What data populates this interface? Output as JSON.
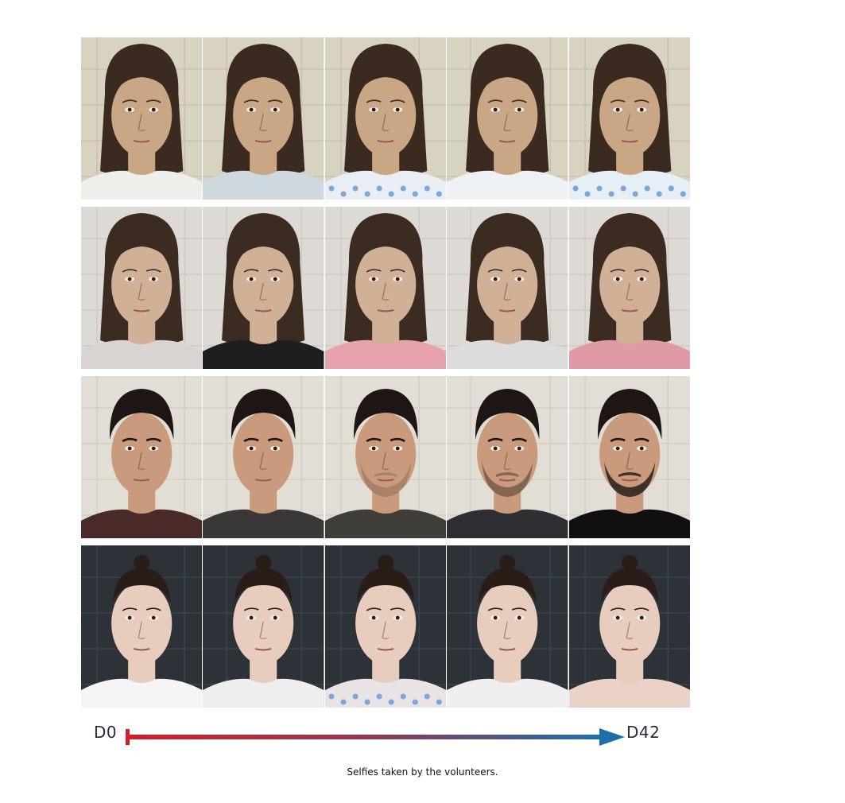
{
  "figure": {
    "caption": "Selfies taken by the volunteers."
  },
  "timeline": {
    "start_label": "D0",
    "end_label": "D42",
    "start_color": "#d11f2b",
    "end_color": "#1e6fa8"
  },
  "rows": [
    {
      "subject": "volunteer-1",
      "bg": "#d8d2c0",
      "tile": "#c7c2ad",
      "skin": "#c9a784",
      "hair": "#3a2a1f",
      "hair_style": "long",
      "facial_hair": "none",
      "clothes": [
        "#eeeeea",
        "#cfd8de",
        "#e8eef4",
        "#eef2f5",
        "#e6eef6"
      ],
      "clothes_pattern": [
        false,
        false,
        true,
        false,
        true
      ]
    },
    {
      "subject": "volunteer-2",
      "bg": "#dddad5",
      "tile": "#cfcbc4",
      "skin": "#d0b097",
      "hair": "#3b2b20",
      "hair_style": "long",
      "facial_hair": "none",
      "clothes": [
        "#d9d3d2",
        "#1e1e1e",
        "#e6a3ad",
        "#dcdcdc",
        "#df9aa5"
      ],
      "clothes_pattern": [
        false,
        false,
        false,
        false,
        false
      ]
    },
    {
      "subject": "volunteer-3",
      "bg": "#e2ddd5",
      "tile": "#d3cec5",
      "skin": "#c99a7c",
      "hair": "#1d1614",
      "hair_style": "short",
      "facial_hair": "growing",
      "clothes": [
        "#4a2a28",
        "#3a3836",
        "#3f3d38",
        "#2e2e33",
        "#101010"
      ],
      "clothes_pattern": [
        false,
        false,
        false,
        false,
        false
      ]
    },
    {
      "subject": "volunteer-4",
      "bg": "#2c3238",
      "tile": "#3b434a",
      "skin": "#e8cdbe",
      "hair": "#2a1d18",
      "hair_style": "bun",
      "facial_hair": "none",
      "clothes": [
        "#f5f5f5",
        "#eeeeee",
        "#e9e3e6",
        "#efefef",
        "#ead3c6"
      ],
      "clothes_pattern": [
        false,
        false,
        true,
        false,
        false
      ]
    }
  ]
}
